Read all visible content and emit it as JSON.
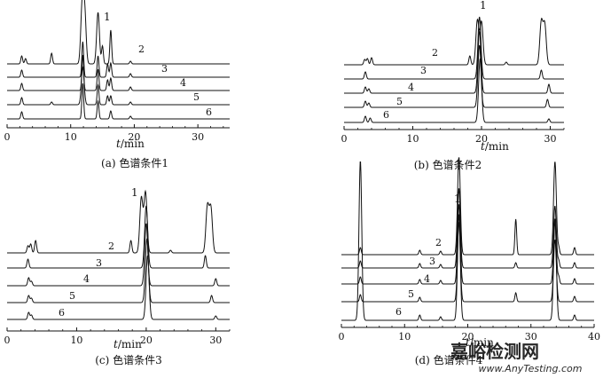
{
  "chart_data": [
    {
      "type": "line",
      "caption": "(a) 色谱条件1",
      "xlabel": "t/min",
      "xlim": [
        0,
        35
      ],
      "xticks": [
        0,
        10,
        20,
        30
      ],
      "x_tick_labels": [
        "0",
        "10",
        "20",
        "30"
      ],
      "trace_labels": [
        "2",
        "3",
        "4",
        "5",
        "6"
      ],
      "peak_label": "1",
      "series": [
        {
          "name": "2",
          "peaks": [
            [
              2.3,
              9
            ],
            [
              2.9,
              6
            ],
            [
              7.0,
              12
            ],
            [
              11.8,
              64
            ],
            [
              12.2,
              58
            ],
            [
              14.3,
              58
            ],
            [
              15.0,
              20
            ],
            [
              16.3,
              38
            ],
            [
              19.4,
              3
            ]
          ]
        },
        {
          "name": "3",
          "peaks": [
            [
              2.3,
              8
            ],
            [
              11.9,
              40
            ],
            [
              14.3,
              24
            ],
            [
              15.8,
              15
            ],
            [
              16.3,
              16
            ],
            [
              19.4,
              4
            ]
          ]
        },
        {
          "name": "4",
          "peaks": [
            [
              2.3,
              8
            ],
            [
              11.9,
              40
            ],
            [
              14.3,
              24
            ],
            [
              15.8,
              12
            ],
            [
              16.3,
              14
            ],
            [
              19.4,
              4
            ]
          ]
        },
        {
          "name": "5",
          "peaks": [
            [
              2.3,
              8
            ],
            [
              7.0,
              3
            ],
            [
              11.9,
              42
            ],
            [
              14.3,
              22
            ],
            [
              15.8,
              10
            ],
            [
              16.3,
              10
            ],
            [
              19.4,
              3
            ]
          ]
        },
        {
          "name": "6",
          "peaks": [
            [
              2.3,
              8
            ],
            [
              11.9,
              40
            ],
            [
              14.3,
              20
            ],
            [
              16.3,
              9
            ],
            [
              19.4,
              3
            ]
          ]
        }
      ]
    },
    {
      "type": "line",
      "caption": "(b) 色谱条件2",
      "xlabel": "t/min",
      "xlim": [
        0,
        32
      ],
      "xticks": [
        0,
        10,
        20,
        30
      ],
      "x_tick_labels": [
        "0",
        "10",
        "20",
        "30"
      ],
      "trace_labels": [
        "2",
        "3",
        "4",
        "5",
        "6"
      ],
      "peak_label": "1",
      "series": [
        {
          "name": "2",
          "peaks": [
            [
              3.0,
              6
            ],
            [
              3.4,
              7
            ],
            [
              4.0,
              8
            ],
            [
              18.3,
              10
            ],
            [
              19.4,
              50
            ],
            [
              20.0,
              48
            ],
            [
              23.6,
              3
            ],
            [
              28.7,
              48
            ],
            [
              29.2,
              45
            ]
          ]
        },
        {
          "name": "3",
          "peaks": [
            [
              3.1,
              8
            ],
            [
              19.7,
              70
            ],
            [
              28.7,
              10
            ]
          ]
        },
        {
          "name": "4",
          "peaks": [
            [
              3.1,
              7
            ],
            [
              3.6,
              5
            ],
            [
              19.7,
              70
            ],
            [
              29.8,
              10
            ]
          ]
        },
        {
          "name": "5",
          "peaks": [
            [
              3.1,
              7
            ],
            [
              3.6,
              5
            ],
            [
              19.7,
              70
            ],
            [
              29.6,
              9
            ]
          ]
        },
        {
          "name": "6",
          "peaks": [
            [
              3.1,
              7
            ],
            [
              3.8,
              5
            ],
            [
              19.8,
              72
            ],
            [
              29.8,
              4
            ]
          ]
        }
      ]
    },
    {
      "type": "line",
      "caption": "(c) 色谱条件3",
      "xlabel": "t/min",
      "xlim": [
        0,
        32
      ],
      "xticks": [
        0,
        10,
        20,
        30
      ],
      "x_tick_labels": [
        "0",
        "10",
        "20",
        "30"
      ],
      "trace_labels": [
        "2",
        "3",
        "4",
        "5",
        "6"
      ],
      "peak_label": "1",
      "series": [
        {
          "name": "2",
          "peaks": [
            [
              3.0,
              8
            ],
            [
              3.4,
              10
            ],
            [
              4.1,
              14
            ],
            [
              17.8,
              14
            ],
            [
              19.3,
              62
            ],
            [
              19.9,
              68
            ],
            [
              23.5,
              3
            ],
            [
              28.8,
              52
            ],
            [
              29.3,
              50
            ]
          ]
        },
        {
          "name": "3",
          "peaks": [
            [
              3.0,
              10
            ],
            [
              20.0,
              70
            ],
            [
              28.5,
              14
            ]
          ]
        },
        {
          "name": "4",
          "peaks": [
            [
              3.1,
              9
            ],
            [
              3.5,
              5
            ],
            [
              20.0,
              70
            ],
            [
              30.0,
              8
            ]
          ]
        },
        {
          "name": "5",
          "peaks": [
            [
              3.1,
              8
            ],
            [
              3.5,
              5
            ],
            [
              20.1,
              72
            ],
            [
              29.4,
              8
            ]
          ]
        },
        {
          "name": "6",
          "peaks": [
            [
              3.1,
              8
            ],
            [
              3.5,
              5
            ],
            [
              20.2,
              72
            ],
            [
              30.0,
              4
            ]
          ]
        }
      ]
    },
    {
      "type": "line",
      "caption": "(d) 色谱条件4",
      "xlabel": "t/min",
      "xlim": [
        0,
        40
      ],
      "xticks": [
        0,
        10,
        20,
        30,
        40
      ],
      "x_tick_labels": [
        "0",
        "10",
        "20",
        "30",
        "40"
      ],
      "trace_labels": [
        "2",
        "3",
        "4",
        "5",
        "6"
      ],
      "peak_label": "1",
      "series": [
        {
          "name": "2",
          "peaks": [
            [
              3.0,
              8
            ],
            [
              12.4,
              5
            ],
            [
              15.7,
              4
            ],
            [
              18.6,
              110
            ],
            [
              27.6,
              40
            ],
            [
              33.8,
              105
            ],
            [
              34.4,
              8
            ],
            [
              36.9,
              8
            ]
          ]
        },
        {
          "name": "3",
          "peaks": [
            [
              3.0,
              8
            ],
            [
              12.4,
              5
            ],
            [
              15.7,
              4
            ],
            [
              18.6,
              90
            ],
            [
              27.6,
              6
            ],
            [
              33.8,
              70
            ],
            [
              34.4,
              8
            ],
            [
              36.9,
              6
            ]
          ]
        },
        {
          "name": "4",
          "peaks": [
            [
              3.0,
              8
            ],
            [
              12.4,
              5
            ],
            [
              15.7,
              4
            ],
            [
              18.6,
              90
            ],
            [
              33.8,
              70
            ],
            [
              34.4,
              8
            ],
            [
              36.9,
              6
            ]
          ]
        },
        {
          "name": "5",
          "peaks": [
            [
              3.0,
              8
            ],
            [
              12.4,
              5
            ],
            [
              18.6,
              90
            ],
            [
              27.6,
              10
            ],
            [
              33.8,
              70
            ],
            [
              36.9,
              6
            ]
          ]
        },
        {
          "name": "6",
          "peaks": [
            [
              3.0,
              180
            ],
            [
              12.4,
              6
            ],
            [
              15.7,
              4
            ],
            [
              18.6,
              120
            ],
            [
              33.8,
              115
            ],
            [
              36.9,
              6
            ]
          ]
        }
      ]
    }
  ],
  "watermark": {
    "title": "嘉峪检测网",
    "url": "www.AnyTesting.com",
    "color": "#b9bec6"
  }
}
